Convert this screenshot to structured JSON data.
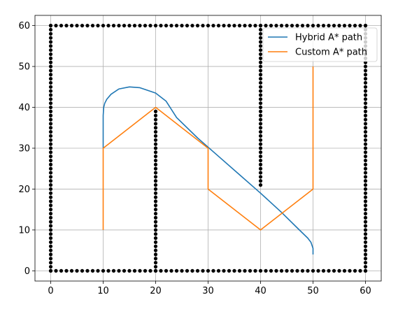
{
  "chart_data": {
    "type": "line",
    "title": "",
    "xlabel": "",
    "ylabel": "",
    "xlim": [
      -3,
      63
    ],
    "ylim": [
      -2.5,
      62.5
    ],
    "xticks": [
      0,
      10,
      20,
      30,
      40,
      50,
      60
    ],
    "yticks": [
      0,
      10,
      20,
      30,
      40,
      50,
      60
    ],
    "grid": true,
    "legend_position": "top-right",
    "series": [
      {
        "name": "Hybrid A* path",
        "color": "#1f77b4",
        "x": [
          50,
          50,
          49.6,
          49,
          47,
          44,
          40,
          36,
          32,
          28,
          24,
          22,
          20,
          17,
          15,
          13,
          11.5,
          10.7,
          10.3,
          10.1,
          10,
          10,
          10
        ],
        "y": [
          4,
          5.5,
          7,
          8,
          10.5,
          14.3,
          19,
          23.5,
          28,
          32.5,
          37.5,
          41.5,
          43.5,
          44.8,
          45,
          44.5,
          43.2,
          42,
          41,
          40,
          38,
          34,
          30
        ]
      },
      {
        "name": "Custom A* path",
        "color": "#ff7f0e",
        "x": [
          10,
          10,
          20,
          30,
          30,
          40,
          50,
          50
        ],
        "y": [
          10,
          30,
          40,
          30,
          20,
          10,
          20,
          50
        ]
      }
    ],
    "obstacles": {
      "color": "#000000",
      "segments": [
        {
          "from": [
            0,
            0
          ],
          "to": [
            60,
            0
          ]
        },
        {
          "from": [
            0,
            60
          ],
          "to": [
            60,
            60
          ]
        },
        {
          "from": [
            0,
            0
          ],
          "to": [
            0,
            60
          ]
        },
        {
          "from": [
            60,
            0
          ],
          "to": [
            60,
            60
          ]
        },
        {
          "from": [
            20,
            0
          ],
          "to": [
            20,
            39
          ]
        },
        {
          "from": [
            40,
            21
          ],
          "to": [
            40,
            60
          ]
        }
      ]
    }
  }
}
